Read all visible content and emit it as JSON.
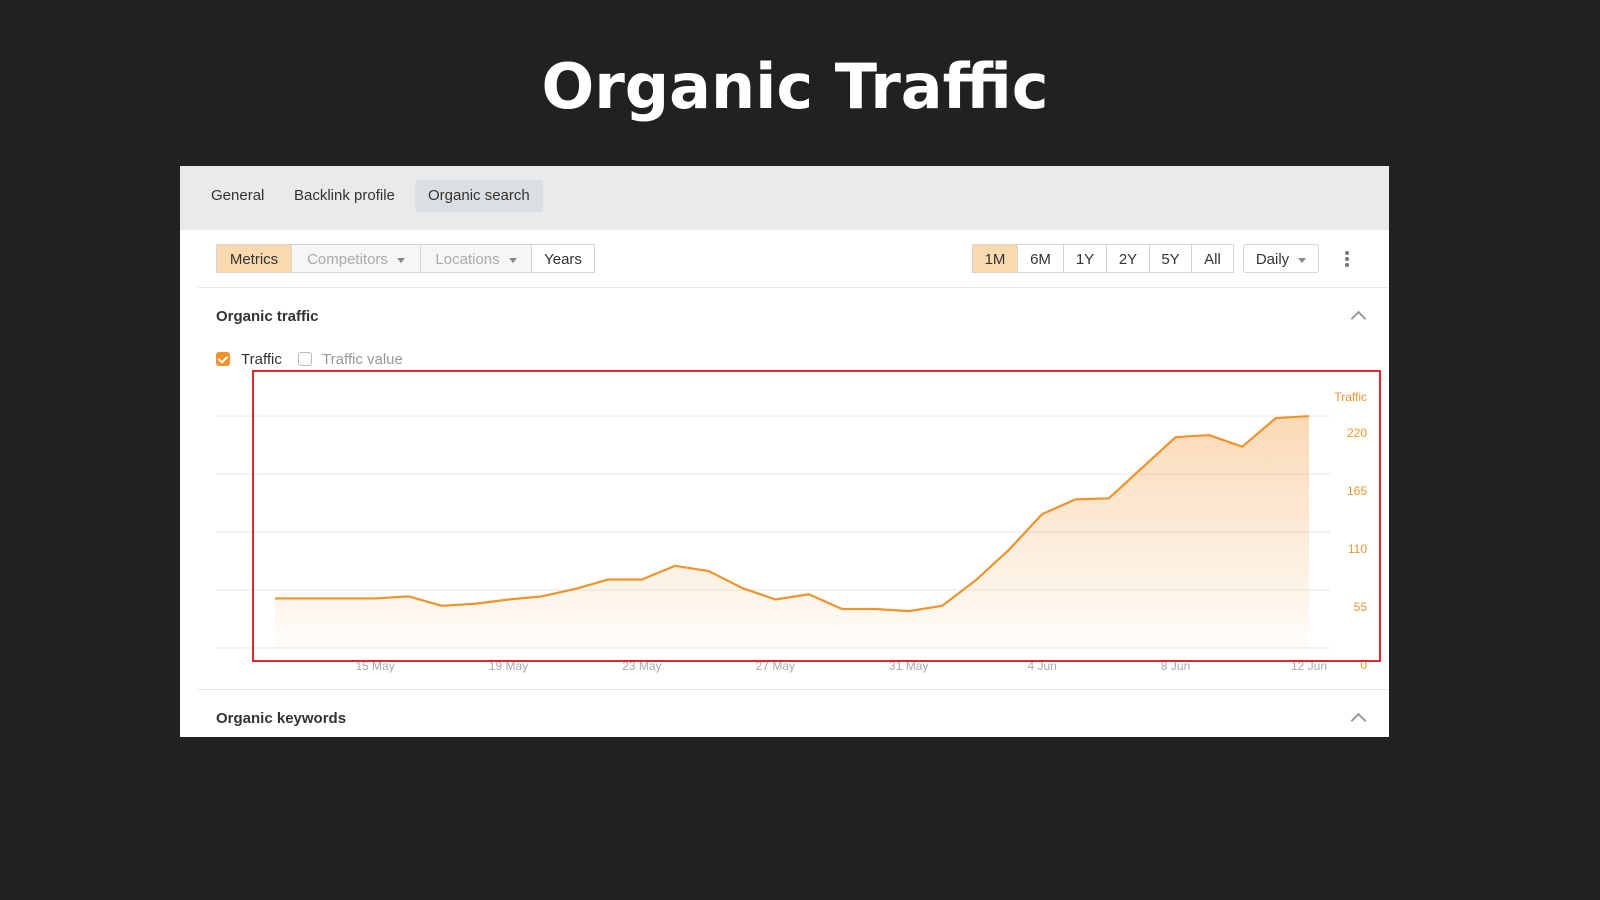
{
  "title": "Organic Traffic",
  "tabs": {
    "items": [
      "General",
      "Backlink profile",
      "Organic search"
    ],
    "active": 2
  },
  "filters": {
    "items": [
      "Metrics",
      "Competitors",
      "Locations",
      "Years"
    ],
    "active": 0
  },
  "ranges": {
    "items": [
      "1M",
      "6M",
      "1Y",
      "2Y",
      "5Y",
      "All"
    ],
    "active": 0
  },
  "interval": "Daily",
  "section_title": "Organic traffic",
  "next_section_title": "Organic keywords",
  "chart_data": {
    "type": "area",
    "y_label": "Traffic",
    "categories": [
      null,
      null,
      null,
      "15 May",
      null,
      null,
      null,
      "19 May",
      null,
      null,
      null,
      "23 May",
      null,
      null,
      null,
      "27 May",
      null,
      null,
      null,
      "31 May",
      null,
      null,
      null,
      "4 Jun",
      null,
      null,
      null,
      "8 Jun",
      null,
      null,
      null,
      "12 Jun"
    ],
    "series": [
      {
        "name": "Traffic",
        "color": "#f0932b",
        "checked": true,
        "values": [
          47,
          47,
          47,
          47,
          49,
          40,
          42,
          46,
          49,
          56,
          65,
          65,
          78,
          73,
          57,
          46,
          51,
          37,
          37,
          35,
          40,
          64,
          93,
          127,
          141,
          142,
          171,
          200,
          202,
          191,
          218,
          220
        ]
      }
    ],
    "hidden_series": [
      "Traffic value"
    ],
    "ylim": [
      0,
      240
    ],
    "yticks": [
      0,
      55,
      110,
      165,
      220
    ],
    "grid": true
  }
}
